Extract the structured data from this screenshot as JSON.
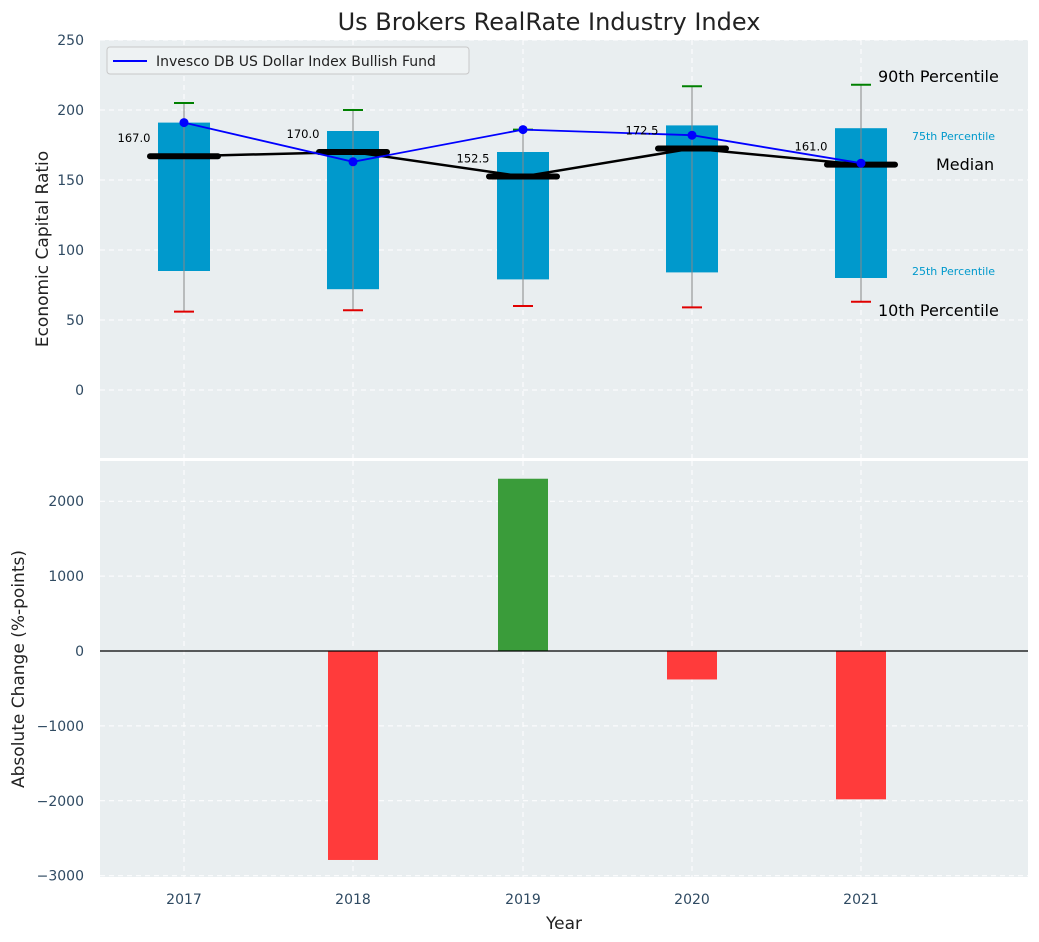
{
  "title": "Us Brokers RealRate Industry Index",
  "chart_data": [
    {
      "type": "box",
      "ylabel": "Economic Capital Ratio",
      "ylim": [
        -50,
        250
      ],
      "yticks": [
        0,
        50,
        100,
        150,
        200,
        250
      ],
      "categories": [
        "2017",
        "2018",
        "2019",
        "2020",
        "2021"
      ],
      "p10": [
        56,
        57,
        60,
        59,
        63
      ],
      "p25": [
        85,
        72,
        79,
        84,
        80
      ],
      "median": [
        167.0,
        170.0,
        152.5,
        172.5,
        161.0
      ],
      "median_labels": [
        "167.0",
        "170.0",
        "152.5",
        "172.5",
        "161.0"
      ],
      "p75": [
        191,
        185,
        170,
        189,
        187
      ],
      "p90": [
        205,
        200,
        186,
        217,
        218
      ],
      "fund": {
        "name": "Invesco DB US Dollar Index Bullish Fund",
        "values": [
          191,
          163,
          186,
          182,
          162
        ]
      },
      "legend": {
        "label": "Invesco DB US Dollar Index Bullish Fund",
        "position": "upper-left"
      },
      "annotations": {
        "p90": "90th Percentile",
        "p75": "75th Percentile",
        "median": "Median",
        "p25": "25th Percentile",
        "p10": "10th Percentile"
      }
    },
    {
      "type": "bar",
      "xlabel": "Year",
      "ylabel": "Absolute Change (%-points)",
      "ylim": [
        -3030,
        2300
      ],
      "yticks": [
        -3000,
        -2000,
        -1000,
        0,
        1000,
        2000
      ],
      "categories": [
        "2017",
        "2018",
        "2019",
        "2020",
        "2021"
      ],
      "values": [
        null,
        -2790,
        2300,
        -380,
        -1980
      ]
    }
  ],
  "colors": {
    "background": "#e9eef0",
    "box": "#0099cc",
    "fund_line": "#0000ff",
    "median": "#000000",
    "p90_cap": "#008000",
    "p10_cap": "#e00000",
    "positive_bar": "#3a9c3a",
    "negative_bar": "#ff3b3b",
    "tick_text": "#2f4a62"
  }
}
